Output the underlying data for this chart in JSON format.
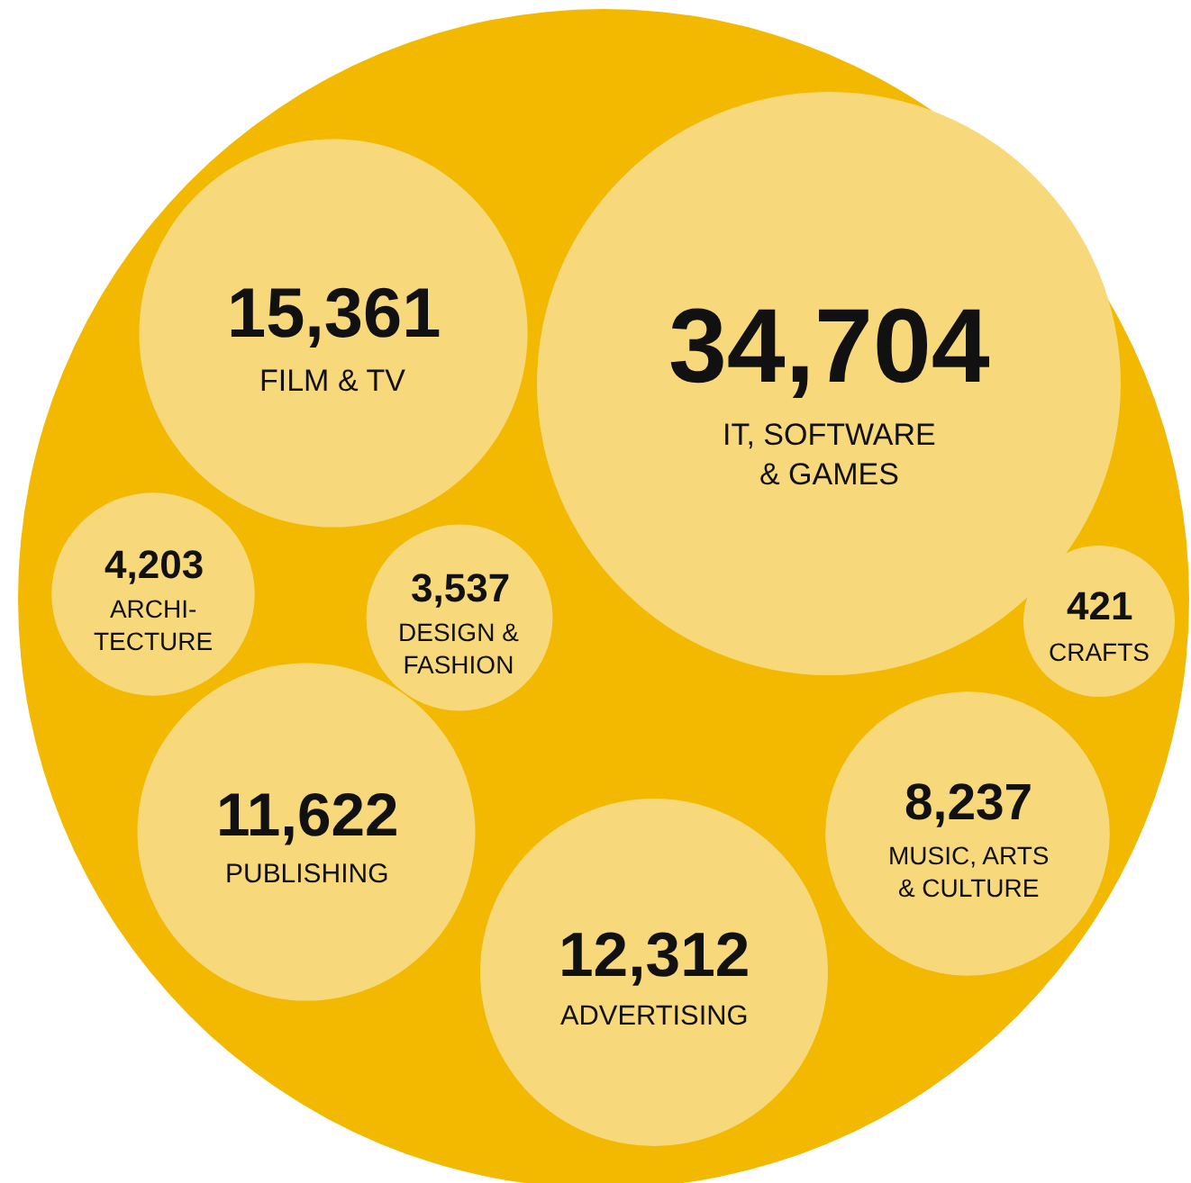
{
  "chart_data": {
    "type": "other",
    "categories": [
      "IT, SOFTWARE\n& GAMES",
      "FILM & TV",
      "ARCHI-\nTECTURE",
      "DESIGN &\nFASHION",
      "CRAFTS",
      "PUBLISHING",
      "ADVERTISING",
      "MUSIC, ARTS\n& CULTURE"
    ],
    "values": [
      34704,
      15361,
      4203,
      3537,
      421,
      11622,
      12312,
      8237
    ],
    "colors": [
      "#f7d97c",
      "#f7d97c",
      "#f7d97c",
      "#f7d97c",
      "#f7d97c",
      "#f7d97c",
      "#f7d97c",
      "#f7d97c"
    ],
    "value_labels": [
      "34,704",
      "15,361",
      "4,203",
      "3,537",
      "421",
      "11,622",
      "12,312",
      "8,237"
    ]
  }
}
